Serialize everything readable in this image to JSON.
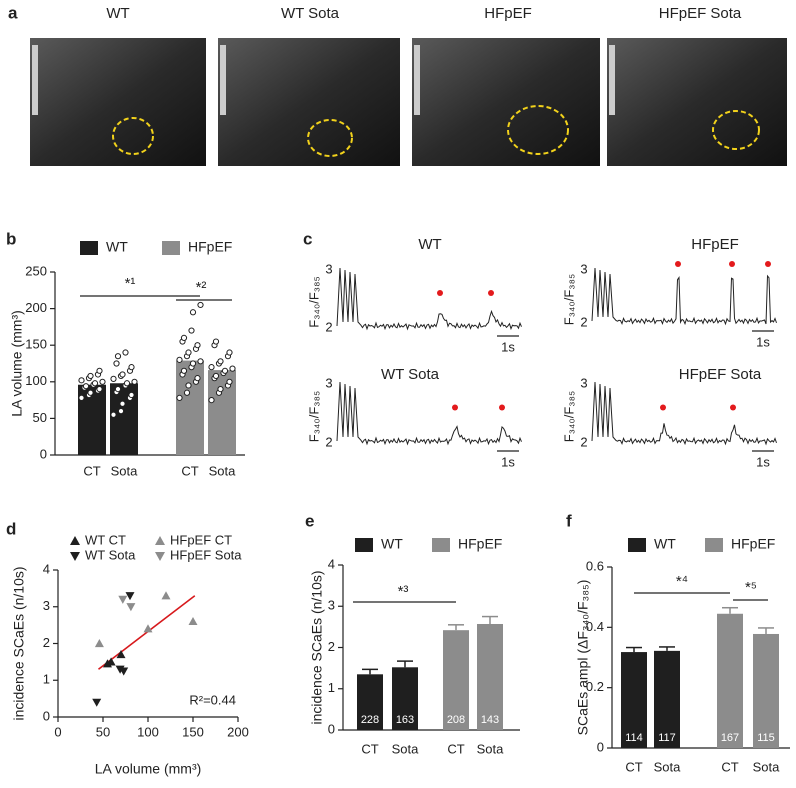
{
  "panel_a": {
    "panel": "a",
    "titles": [
      "WT",
      "WT Sota",
      "HFpEF",
      "HFpEF Sota"
    ]
  },
  "panel_c": {
    "panel": "c",
    "titles": [
      "WT",
      "HFpEF",
      "WT Sota",
      "HFpEF Sota"
    ],
    "ylabel": "F₃₄₀/F₃₈₅",
    "yticks": [
      2,
      3
    ],
    "scale_label": "1s"
  },
  "chart_data": [
    {
      "type": "bar",
      "panel": "b",
      "ylabel": "LA volume (mm³)",
      "ylim": [
        0,
        250
      ],
      "yticks": [
        0,
        50,
        100,
        150,
        200,
        250
      ],
      "categories": [
        "CT",
        "Sota",
        "CT",
        "Sota"
      ],
      "annotations": [
        "*¹",
        "*²"
      ],
      "series": [
        {
          "name": "WT",
          "color": "#1f1f1f",
          "values": [
            96,
            98,
            null,
            null
          ],
          "points": [
            [
              78,
              82,
              85,
              88,
              90,
              92,
              94,
              96,
              98,
              100,
              102,
              105,
              108,
              110,
              115
            ],
            [
              55,
              60,
              70,
              78,
              82,
              86,
              90,
              95,
              98,
              100,
              104,
              108,
              110,
              115,
              120,
              125,
              135,
              140
            ],
            null,
            null
          ]
        },
        {
          "name": "HFpEF",
          "color": "#8c8c8c",
          "values": [
            null,
            null,
            129,
            116
          ],
          "points": [
            null,
            null,
            [
              78,
              85,
              95,
              100,
              105,
              110,
              115,
              120,
              125,
              128,
              130,
              135,
              140,
              145,
              150,
              155,
              160,
              170,
              195,
              205
            ],
            [
              75,
              85,
              90,
              95,
              100,
              105,
              108,
              112,
              115,
              118,
              120,
              125,
              128,
              135,
              140,
              150,
              155
            ]
          ]
        }
      ]
    },
    {
      "type": "scatter",
      "panel": "d",
      "xlabel": "LA volume (mm³)",
      "ylabel": "incidence SCaEs (n/10s)",
      "xlim": [
        0,
        200
      ],
      "xticks": [
        0,
        50,
        100,
        150,
        200
      ],
      "ylim": [
        0,
        4
      ],
      "yticks": [
        0,
        1,
        2,
        3,
        4
      ],
      "annotation": "R²=0.44",
      "series": [
        {
          "name": "WT CT",
          "color": "#1f1f1f",
          "marker": "triangle-up",
          "x": [
            55,
            59,
            70
          ],
          "y": [
            1.45,
            1.5,
            1.7
          ]
        },
        {
          "name": "WT Sota",
          "color": "#1f1f1f",
          "marker": "triangle-down",
          "x": [
            43,
            69,
            73,
            80
          ],
          "y": [
            0.4,
            1.3,
            1.25,
            3.3
          ]
        },
        {
          "name": "HFpEF CT",
          "color": "#8c8c8c",
          "marker": "triangle-up",
          "x": [
            46,
            100,
            120,
            150
          ],
          "y": [
            2.0,
            2.4,
            3.3,
            2.6
          ]
        },
        {
          "name": "HFpEF Sota",
          "color": "#8c8c8c",
          "marker": "triangle-down",
          "x": [
            72,
            81
          ],
          "y": [
            3.2,
            3.0
          ]
        }
      ],
      "fit": {
        "color": "#d7191c",
        "x": [
          45,
          152
        ],
        "y": [
          1.3,
          3.3
        ]
      }
    },
    {
      "type": "bar",
      "panel": "e",
      "ylabel": "incidence SCaEs (n/10s)",
      "ylim": [
        0,
        4
      ],
      "yticks": [
        0,
        1,
        2,
        3,
        4
      ],
      "categories": [
        "CT",
        "Sota",
        "CT",
        "Sota"
      ],
      "annotations": [
        "*³"
      ],
      "series": [
        {
          "name": "WT",
          "color": "#1f1f1f",
          "values": [
            1.35,
            1.52,
            null,
            null
          ],
          "errors": [
            0.12,
            0.15,
            null,
            null
          ],
          "n": [
            228,
            163,
            null,
            null
          ]
        },
        {
          "name": "HFpEF",
          "color": "#8c8c8c",
          "values": [
            null,
            null,
            2.42,
            2.57
          ],
          "errors": [
            null,
            null,
            0.13,
            0.18
          ],
          "n": [
            null,
            null,
            208,
            143
          ]
        }
      ]
    },
    {
      "type": "bar",
      "panel": "f",
      "ylabel": "SCaEs ampl (ΔF₃₄₀/F₃₈₅)",
      "ylim": [
        0,
        0.6
      ],
      "yticks": [
        0,
        0.2,
        0.4,
        0.6
      ],
      "categories": [
        "CT",
        "Sota",
        "CT",
        "Sota"
      ],
      "annotations": [
        "*⁴",
        "*⁵"
      ],
      "series": [
        {
          "name": "WT",
          "color": "#1f1f1f",
          "values": [
            0.318,
            0.322,
            null,
            null
          ],
          "errors": [
            0.015,
            0.013,
            null,
            null
          ],
          "n": [
            114,
            117,
            null,
            null
          ]
        },
        {
          "name": "HFpEF",
          "color": "#8c8c8c",
          "values": [
            null,
            null,
            0.445,
            0.378
          ],
          "errors": [
            null,
            null,
            0.02,
            0.02
          ],
          "n": [
            null,
            null,
            167,
            115
          ]
        }
      ]
    }
  ]
}
